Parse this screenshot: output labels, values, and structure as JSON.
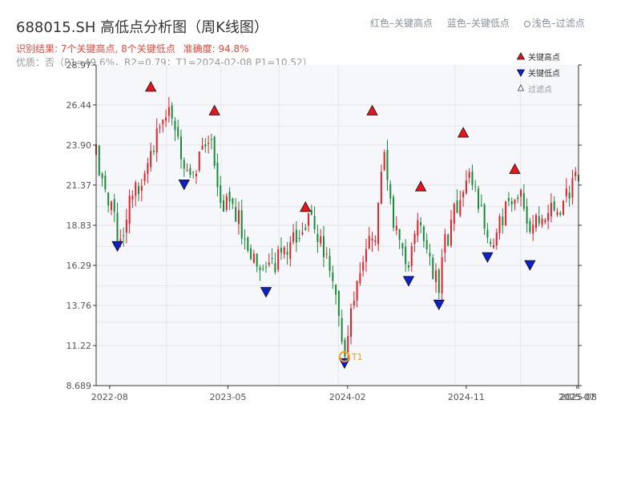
{
  "header": {
    "title": "688015.SH 高低点分析图（周K线图）",
    "legend_high": "红色–关键高点",
    "legend_low": "蓝色–关键低点",
    "legend_filtered": "浅色–过滤点",
    "result_prefix": "识别结果:",
    "result_counts": "7个关键高点, 8个关键低点",
    "result_accuracy": "准确度: 94.8%",
    "status": "优质：否（P1=49.6%，R2=0.79；T1=2024-02-08 P1=10.52）"
  },
  "legend": {
    "high_label": "关键高点",
    "low_label": "关键低点",
    "filtered_label": "过滤点"
  },
  "colors": {
    "up": "#e0202a",
    "down": "#1a8a3a",
    "high_marker": "#e8141c",
    "low_marker": "#1020c8",
    "t1_marker": "#f0a020",
    "plot_bg": "#f5f7fa",
    "grid": "#e3e6eb"
  },
  "chart_data": {
    "type": "candlestick",
    "title": "688015.SH 高低点分析图（周K线图）",
    "x_ticks": [
      "2022-08",
      "2023-05",
      "2024-02",
      "2024-11",
      "2025-07",
      "2025-08"
    ],
    "y_ticks": [
      8.689,
      11.22,
      13.76,
      16.29,
      18.83,
      21.37,
      23.9,
      26.44,
      28.97
    ],
    "ylim": [
      8.689,
      28.97
    ],
    "xlim": [
      "2022-07-15",
      "2025-08-01"
    ],
    "grid": true,
    "price_path": [
      [
        "2022-07-15",
        23.3
      ],
      [
        "2022-07-29",
        21.0
      ],
      [
        "2022-08-26",
        19.2
      ],
      [
        "2022-09-09",
        17.9
      ],
      [
        "2022-09-30",
        20.2
      ],
      [
        "2022-10-28",
        22.0
      ],
      [
        "2022-12-02",
        24.5
      ],
      [
        "2022-12-30",
        26.2
      ],
      [
        "2023-01-27",
        23.0
      ],
      [
        "2023-02-24",
        22.0
      ],
      [
        "2023-03-17",
        24.5
      ],
      [
        "2023-04-07",
        24.8
      ],
      [
        "2023-04-28",
        20.2
      ],
      [
        "2023-06-02",
        19.5
      ],
      [
        "2023-07-07",
        17.0
      ],
      [
        "2023-08-18",
        16.2
      ],
      [
        "2023-09-29",
        17.2
      ],
      [
        "2023-11-10",
        19.2
      ],
      [
        "2023-12-15",
        18.0
      ],
      [
        "2024-01-12",
        15.0
      ],
      [
        "2024-02-08",
        11.0
      ],
      [
        "2024-02-23",
        14.0
      ],
      [
        "2024-03-29",
        17.0
      ],
      [
        "2024-04-19",
        18.5
      ],
      [
        "2024-05-10",
        23.0
      ],
      [
        "2024-05-31",
        18.5
      ],
      [
        "2024-07-05",
        16.5
      ],
      [
        "2024-07-26",
        19.5
      ],
      [
        "2024-08-16",
        17.0
      ],
      [
        "2024-09-13",
        15.0
      ],
      [
        "2024-09-27",
        17.5
      ],
      [
        "2024-10-25",
        20.0
      ],
      [
        "2024-11-15",
        22.0
      ],
      [
        "2024-12-13",
        20.5
      ],
      [
        "2025-01-10",
        18.0
      ],
      [
        "2025-02-21",
        20.0
      ],
      [
        "2025-03-21",
        21.5
      ],
      [
        "2025-04-11",
        18.0
      ],
      [
        "2025-05-09",
        19.5
      ],
      [
        "2025-06-13",
        20.0
      ],
      [
        "2025-07-11",
        20.8
      ],
      [
        "2025-08-01",
        22.0
      ]
    ],
    "key_highs": [
      {
        "date": "2022-11-18",
        "price": 27.2
      },
      {
        "date": "2023-04-14",
        "price": 25.7
      },
      {
        "date": "2023-11-10",
        "price": 19.6
      },
      {
        "date": "2024-04-12",
        "price": 25.7
      },
      {
        "date": "2024-08-02",
        "price": 20.9
      },
      {
        "date": "2024-11-08",
        "price": 24.3
      },
      {
        "date": "2025-03-07",
        "price": 22.0
      }
    ],
    "key_lows": [
      {
        "date": "2022-09-02",
        "price": 17.9
      },
      {
        "date": "2023-02-03",
        "price": 21.8
      },
      {
        "date": "2023-08-11",
        "price": 15.0
      },
      {
        "date": "2024-02-08",
        "price": 10.5,
        "label": "T1"
      },
      {
        "date": "2024-07-05",
        "price": 15.7
      },
      {
        "date": "2024-09-13",
        "price": 14.2
      },
      {
        "date": "2025-01-03",
        "price": 17.2
      },
      {
        "date": "2025-04-11",
        "price": 16.7
      }
    ],
    "t1": {
      "label": "T1",
      "date": "2024-02-08",
      "price": 10.52
    }
  }
}
